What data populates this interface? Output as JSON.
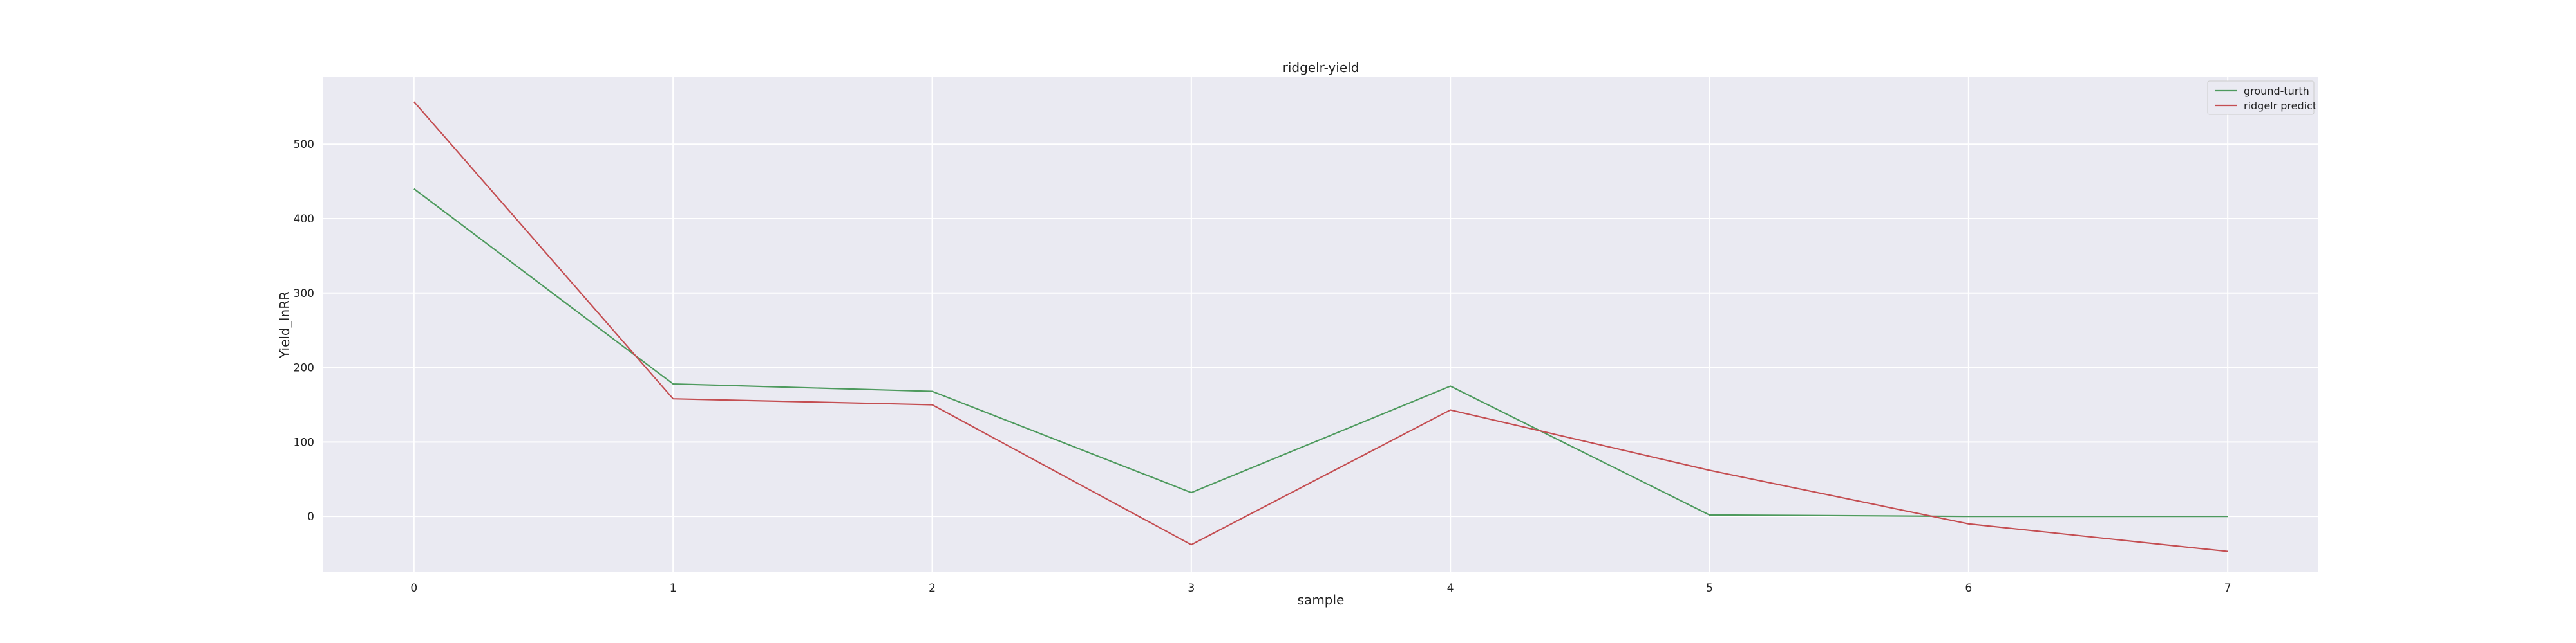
{
  "chart_data": {
    "type": "line",
    "title": "ridgelr-yield",
    "xlabel": "sample",
    "ylabel": "Yield_InRR",
    "x": [
      0,
      1,
      2,
      3,
      4,
      5,
      6,
      7
    ],
    "xticks": [
      0,
      1,
      2,
      3,
      4,
      5,
      6,
      7
    ],
    "yticks": [
      0,
      100,
      200,
      300,
      400,
      500
    ],
    "xlim": [
      -0.35,
      7.35
    ],
    "ylim": [
      -75,
      590
    ],
    "grid": true,
    "legend_position": "top-right",
    "series": [
      {
        "name": "ground-turth",
        "color": "#4e9a5e",
        "values": [
          440,
          178,
          168,
          32,
          175,
          2,
          0,
          0
        ]
      },
      {
        "name": "ridgelr predict",
        "color": "#c44e52",
        "values": [
          557,
          158,
          150,
          -38,
          143,
          62,
          -10,
          -47
        ]
      }
    ]
  }
}
